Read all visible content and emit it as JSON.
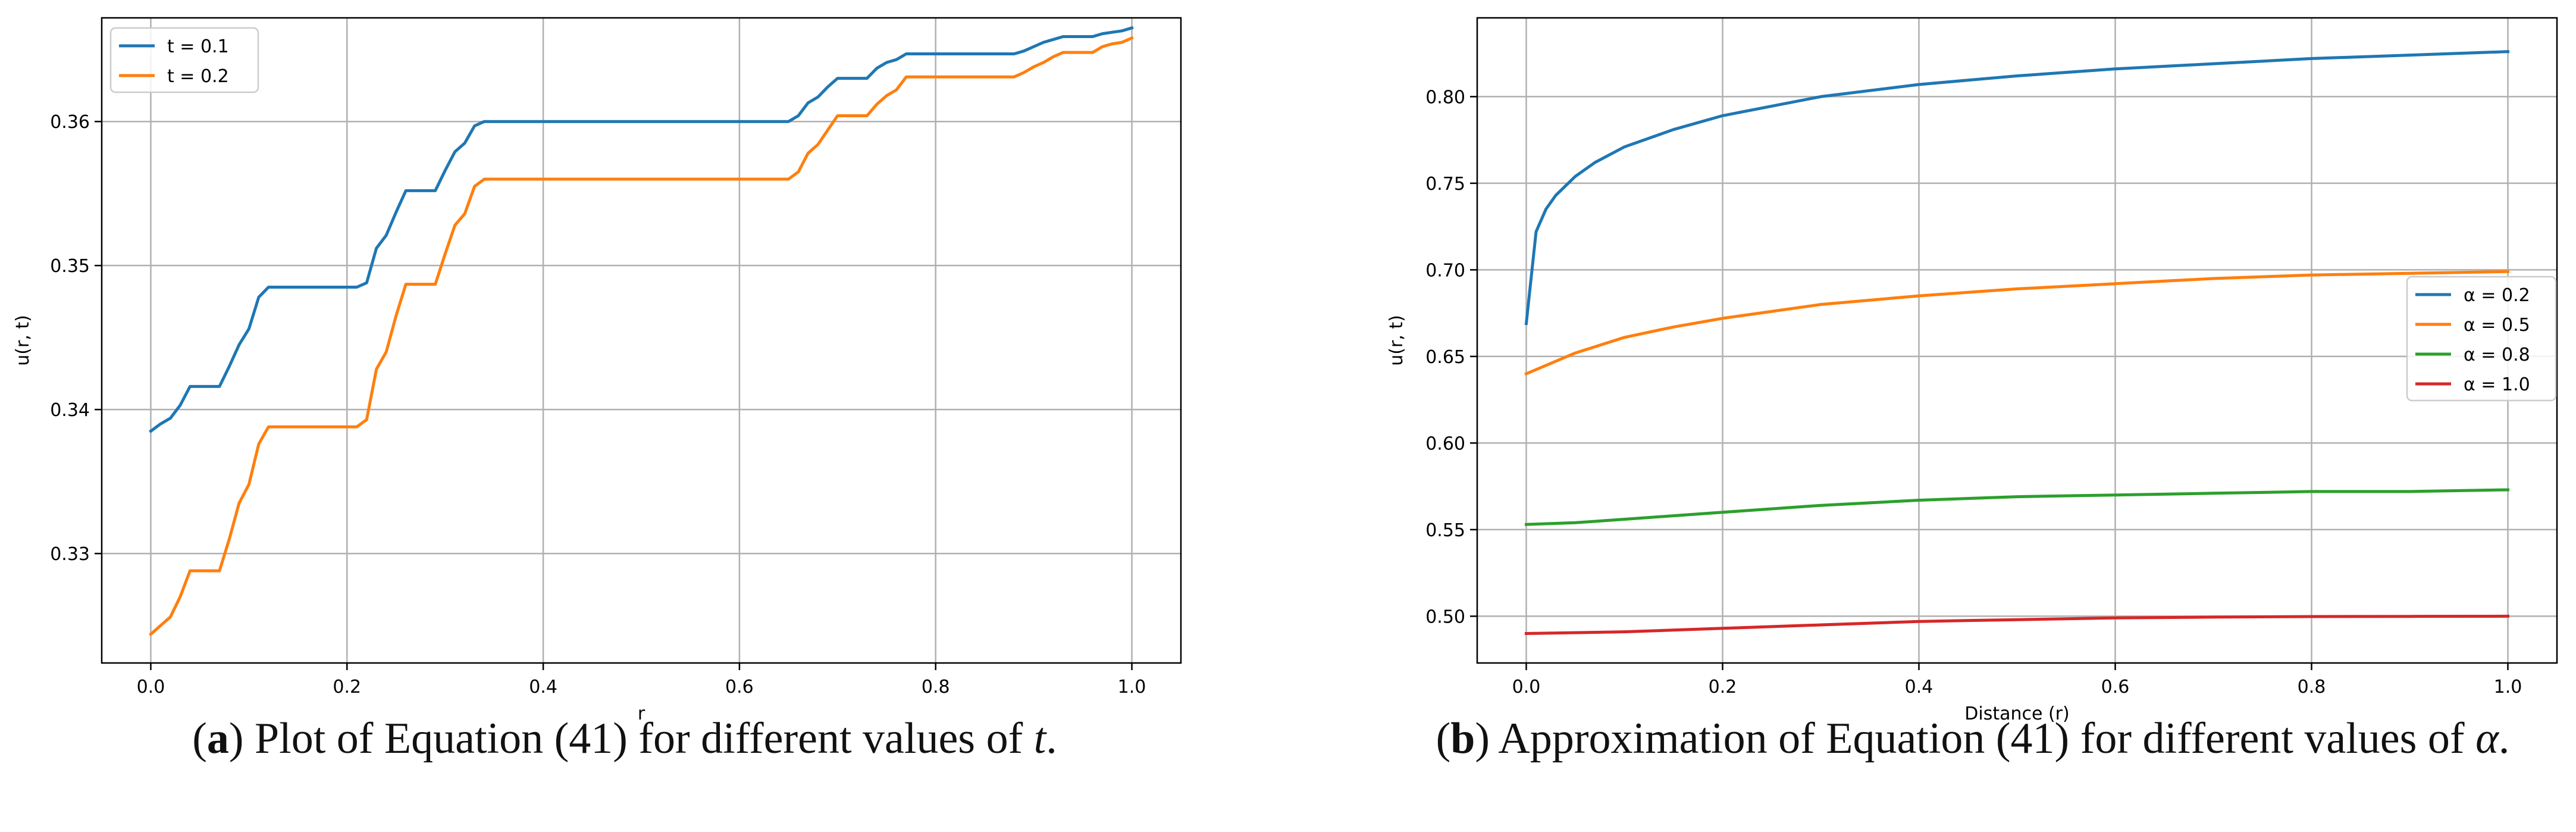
{
  "chart_data": [
    {
      "type": "line",
      "panel": "a",
      "caption": {
        "label": "a",
        "text_before": ") Plot of Equation (41) for different values of ",
        "variable": "t",
        "text_after": "."
      },
      "xlabel": "r",
      "ylabel": "u(r, t)",
      "xlim": [
        -0.05,
        1.05
      ],
      "ylim": [
        0.3224,
        0.3672
      ],
      "x_ticks": [
        0.0,
        0.2,
        0.4,
        0.6,
        0.8,
        1.0
      ],
      "x_tick_labels": [
        "0.0",
        "0.2",
        "0.4",
        "0.6",
        "0.8",
        "1.0"
      ],
      "y_ticks": [
        0.33,
        0.34,
        0.35,
        0.36
      ],
      "y_tick_labels": [
        "0.33",
        "0.34",
        "0.35",
        "0.36"
      ],
      "grid": true,
      "legend_position": "top-left",
      "series": [
        {
          "name": "t = 0.1",
          "color": "#1f77b4",
          "x": [
            0.0,
            0.01,
            0.02,
            0.03,
            0.04,
            0.05,
            0.06,
            0.07,
            0.08,
            0.09,
            0.1,
            0.11,
            0.12,
            0.13,
            0.15,
            0.17,
            0.2,
            0.21,
            0.22,
            0.23,
            0.24,
            0.25,
            0.26,
            0.27,
            0.28,
            0.29,
            0.3,
            0.31,
            0.32,
            0.33,
            0.34,
            0.35,
            0.4,
            0.5,
            0.6,
            0.65,
            0.66,
            0.67,
            0.68,
            0.69,
            0.7,
            0.71,
            0.72,
            0.73,
            0.74,
            0.75,
            0.76,
            0.77,
            0.78,
            0.8,
            0.85,
            0.88,
            0.89,
            0.9,
            0.91,
            0.92,
            0.93,
            0.94,
            0.95,
            0.96,
            0.97,
            0.98,
            0.99,
            1.0
          ],
          "y": [
            0.3385,
            0.339,
            0.3394,
            0.3403,
            0.3416,
            0.3416,
            0.3416,
            0.3416,
            0.343,
            0.3445,
            0.3456,
            0.3478,
            0.3485,
            0.3485,
            0.3485,
            0.3485,
            0.3485,
            0.3485,
            0.3488,
            0.3512,
            0.3521,
            0.3537,
            0.3552,
            0.3552,
            0.3552,
            0.3552,
            0.3566,
            0.3579,
            0.3585,
            0.3597,
            0.36,
            0.36,
            0.36,
            0.36,
            0.36,
            0.36,
            0.3604,
            0.3613,
            0.3617,
            0.3624,
            0.363,
            0.363,
            0.363,
            0.363,
            0.3637,
            0.3641,
            0.3643,
            0.3647,
            0.3647,
            0.3647,
            0.3647,
            0.3647,
            0.3649,
            0.3652,
            0.3655,
            0.3657,
            0.3659,
            0.3659,
            0.3659,
            0.3659,
            0.3661,
            0.3662,
            0.3663,
            0.3665
          ]
        },
        {
          "name": "t = 0.2",
          "color": "#ff7f0e",
          "x": [
            0.0,
            0.01,
            0.02,
            0.03,
            0.04,
            0.05,
            0.06,
            0.07,
            0.08,
            0.09,
            0.1,
            0.11,
            0.12,
            0.13,
            0.15,
            0.17,
            0.2,
            0.21,
            0.22,
            0.23,
            0.24,
            0.25,
            0.26,
            0.27,
            0.28,
            0.29,
            0.3,
            0.31,
            0.32,
            0.33,
            0.34,
            0.35,
            0.4,
            0.5,
            0.6,
            0.65,
            0.66,
            0.67,
            0.68,
            0.69,
            0.7,
            0.71,
            0.72,
            0.73,
            0.74,
            0.75,
            0.76,
            0.77,
            0.78,
            0.8,
            0.85,
            0.88,
            0.89,
            0.9,
            0.91,
            0.92,
            0.93,
            0.94,
            0.95,
            0.96,
            0.97,
            0.98,
            0.99,
            1.0
          ],
          "y": [
            0.3244,
            0.325,
            0.3256,
            0.327,
            0.3288,
            0.3288,
            0.3288,
            0.3288,
            0.331,
            0.3335,
            0.3348,
            0.3376,
            0.3388,
            0.3388,
            0.3388,
            0.3388,
            0.3388,
            0.3388,
            0.3393,
            0.3428,
            0.344,
            0.3465,
            0.3487,
            0.3487,
            0.3487,
            0.3487,
            0.3508,
            0.3528,
            0.3536,
            0.3555,
            0.356,
            0.356,
            0.356,
            0.356,
            0.356,
            0.356,
            0.3565,
            0.3578,
            0.3584,
            0.3594,
            0.3604,
            0.3604,
            0.3604,
            0.3604,
            0.3612,
            0.3618,
            0.3622,
            0.3631,
            0.3631,
            0.3631,
            0.3631,
            0.3631,
            0.3634,
            0.3638,
            0.3641,
            0.3645,
            0.3648,
            0.3648,
            0.3648,
            0.3648,
            0.3652,
            0.3654,
            0.3655,
            0.3658
          ]
        }
      ]
    },
    {
      "type": "line",
      "panel": "b",
      "caption": {
        "label": "b",
        "text_before": ") Approximation of Equation (41) for different values of ",
        "variable": "α",
        "text_after": "."
      },
      "xlabel": "Distance (r)",
      "ylabel": "u(r, t)",
      "xlim": [
        -0.05,
        1.05
      ],
      "ylim": [
        0.473,
        0.8455
      ],
      "x_ticks": [
        0.0,
        0.2,
        0.4,
        0.6,
        0.8,
        1.0
      ],
      "x_tick_labels": [
        "0.0",
        "0.2",
        "0.4",
        "0.6",
        "0.8",
        "1.0"
      ],
      "y_ticks": [
        0.5,
        0.55,
        0.6,
        0.65,
        0.7,
        0.75,
        0.8
      ],
      "y_tick_labels": [
        "0.50",
        "0.55",
        "0.60",
        "0.65",
        "0.70",
        "0.75",
        "0.80"
      ],
      "grid": true,
      "legend_position": "center-right",
      "series": [
        {
          "name": "α = 0.2",
          "color": "#1f77b4",
          "x": [
            0.0,
            0.01,
            0.02,
            0.03,
            0.05,
            0.07,
            0.1,
            0.15,
            0.2,
            0.3,
            0.4,
            0.5,
            0.6,
            0.7,
            0.8,
            0.9,
            1.0
          ],
          "y": [
            0.669,
            0.722,
            0.735,
            0.743,
            0.754,
            0.762,
            0.771,
            0.781,
            0.789,
            0.8,
            0.807,
            0.812,
            0.816,
            0.819,
            0.822,
            0.824,
            0.826
          ]
        },
        {
          "name": "α = 0.5",
          "color": "#ff7f0e",
          "x": [
            0.0,
            0.05,
            0.1,
            0.15,
            0.2,
            0.3,
            0.4,
            0.5,
            0.6,
            0.7,
            0.8,
            0.9,
            1.0
          ],
          "y": [
            0.64,
            0.652,
            0.661,
            0.667,
            0.672,
            0.68,
            0.685,
            0.689,
            0.692,
            0.695,
            0.697,
            0.698,
            0.699
          ]
        },
        {
          "name": "α = 0.8",
          "color": "#2ca02c",
          "x": [
            0.0,
            0.05,
            0.1,
            0.15,
            0.2,
            0.3,
            0.4,
            0.5,
            0.6,
            0.7,
            0.8,
            0.9,
            1.0
          ],
          "y": [
            0.553,
            0.554,
            0.556,
            0.558,
            0.56,
            0.564,
            0.567,
            0.569,
            0.57,
            0.571,
            0.572,
            0.572,
            0.573
          ]
        },
        {
          "name": "α = 1.0",
          "color": "#d62728",
          "x": [
            0.0,
            0.1,
            0.2,
            0.3,
            0.4,
            0.5,
            0.6,
            0.7,
            0.8,
            0.9,
            1.0
          ],
          "y": [
            0.49,
            0.491,
            0.493,
            0.495,
            0.497,
            0.498,
            0.499,
            0.4995,
            0.4998,
            0.4999,
            0.5
          ]
        }
      ]
    }
  ]
}
